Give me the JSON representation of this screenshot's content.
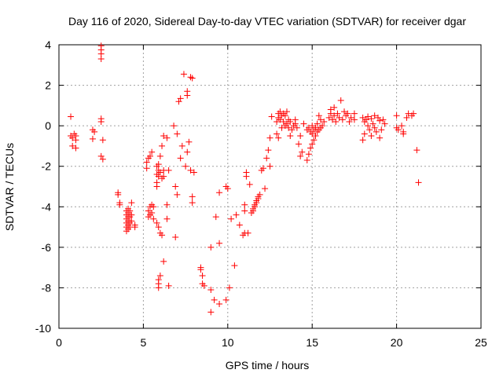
{
  "chart_data": {
    "type": "scatter",
    "title": "Day 116 of 2020, Sidereal Day-to-day VTEC variation (SDTVAR) for receiver dgar",
    "xlabel": "GPS time / hours",
    "ylabel": "SDTVAR / TECUs",
    "xlim": [
      0,
      25
    ],
    "ylim": [
      -10,
      4
    ],
    "xticks": [
      0,
      5,
      10,
      15,
      20,
      25
    ],
    "yticks": [
      -10,
      -8,
      -6,
      -4,
      -2,
      0,
      2,
      4
    ],
    "grid": true,
    "marker": "+",
    "color": "#ff0000",
    "series": [
      {
        "name": "SDTVAR",
        "points": [
          [
            0.7,
            0.45
          ],
          [
            0.7,
            -0.5
          ],
          [
            0.8,
            -0.6
          ],
          [
            0.8,
            -1.0
          ],
          [
            0.9,
            -0.4
          ],
          [
            1.0,
            -0.7
          ],
          [
            1.0,
            -1.1
          ],
          [
            1.0,
            -0.5
          ],
          [
            2.0,
            -0.2
          ],
          [
            2.0,
            -0.65
          ],
          [
            2.1,
            -0.3
          ],
          [
            2.5,
            3.95
          ],
          [
            2.5,
            3.75
          ],
          [
            2.5,
            3.55
          ],
          [
            2.5,
            3.3
          ],
          [
            2.5,
            0.35
          ],
          [
            2.5,
            0.2
          ],
          [
            2.5,
            -1.5
          ],
          [
            2.6,
            -1.65
          ],
          [
            2.6,
            -0.7
          ],
          [
            3.5,
            -3.3
          ],
          [
            3.5,
            -3.4
          ],
          [
            3.6,
            -3.8
          ],
          [
            3.6,
            -3.9
          ],
          [
            4.0,
            -4.2
          ],
          [
            4.0,
            -4.4
          ],
          [
            4.0,
            -4.6
          ],
          [
            4.0,
            -4.8
          ],
          [
            4.0,
            -5.0
          ],
          [
            4.0,
            -5.2
          ],
          [
            4.1,
            -4.1
          ],
          [
            4.1,
            -4.3
          ],
          [
            4.1,
            -4.5
          ],
          [
            4.1,
            -4.7
          ],
          [
            4.1,
            -4.9
          ],
          [
            4.1,
            -5.1
          ],
          [
            4.2,
            -4.2
          ],
          [
            4.2,
            -4.5
          ],
          [
            4.2,
            -4.8
          ],
          [
            4.2,
            -5.0
          ],
          [
            4.3,
            -4.4
          ],
          [
            4.3,
            -4.7
          ],
          [
            4.3,
            -3.8
          ],
          [
            4.5,
            -5.0
          ],
          [
            4.5,
            -4.9
          ],
          [
            5.2,
            -2.1
          ],
          [
            5.2,
            -1.8
          ],
          [
            5.3,
            -1.6
          ],
          [
            5.3,
            -4.2
          ],
          [
            5.3,
            -4.5
          ],
          [
            5.4,
            -1.5
          ],
          [
            5.4,
            -4.0
          ],
          [
            5.4,
            -4.4
          ],
          [
            5.5,
            -3.9
          ],
          [
            5.5,
            -4.3
          ],
          [
            5.5,
            -1.3
          ],
          [
            5.6,
            -4.0
          ],
          [
            5.6,
            -4.6
          ],
          [
            5.8,
            -2.0
          ],
          [
            5.8,
            -2.4
          ],
          [
            5.8,
            -2.8
          ],
          [
            5.8,
            -3.0
          ],
          [
            5.8,
            -4.8
          ],
          [
            5.9,
            -1.9
          ],
          [
            5.9,
            -2.2
          ],
          [
            5.9,
            -2.5
          ],
          [
            5.9,
            -5.0
          ],
          [
            5.9,
            -7.6
          ],
          [
            5.9,
            -7.8
          ],
          [
            5.9,
            -8.0
          ],
          [
            6.0,
            -1.5
          ],
          [
            6.0,
            -2.3
          ],
          [
            6.0,
            -5.3
          ],
          [
            6.0,
            -7.4
          ],
          [
            6.1,
            -1.0
          ],
          [
            6.1,
            -2.6
          ],
          [
            6.1,
            -5.4
          ],
          [
            6.2,
            -2.5
          ],
          [
            6.2,
            -2.2
          ],
          [
            6.2,
            -6.7
          ],
          [
            6.2,
            -0.5
          ],
          [
            6.4,
            -0.6
          ],
          [
            6.4,
            -3.9
          ],
          [
            6.4,
            -4.6
          ],
          [
            6.5,
            -2.2
          ],
          [
            6.5,
            -7.9
          ],
          [
            6.8,
            0.0
          ],
          [
            6.9,
            -3.0
          ],
          [
            6.9,
            -5.5
          ],
          [
            7.0,
            -0.4
          ],
          [
            7.0,
            -3.4
          ],
          [
            7.1,
            1.2
          ],
          [
            7.2,
            1.35
          ],
          [
            7.2,
            -1.6
          ],
          [
            7.3,
            -1.0
          ],
          [
            7.4,
            2.55
          ],
          [
            7.5,
            -2.0
          ],
          [
            7.6,
            1.5
          ],
          [
            7.6,
            1.7
          ],
          [
            7.6,
            -1.3
          ],
          [
            7.7,
            -0.8
          ],
          [
            7.8,
            2.4
          ],
          [
            7.8,
            -2.2
          ],
          [
            7.9,
            2.35
          ],
          [
            7.9,
            -3.5
          ],
          [
            7.9,
            -3.8
          ],
          [
            8.0,
            -2.3
          ],
          [
            8.4,
            -7.0
          ],
          [
            8.4,
            -7.1
          ],
          [
            8.5,
            -7.4
          ],
          [
            8.5,
            -7.8
          ],
          [
            8.6,
            -7.9
          ],
          [
            9.0,
            -9.2
          ],
          [
            9.0,
            -8.1
          ],
          [
            9.0,
            -6.0
          ],
          [
            9.2,
            -8.6
          ],
          [
            9.3,
            -4.5
          ],
          [
            9.5,
            -8.8
          ],
          [
            9.5,
            -5.8
          ],
          [
            9.5,
            -3.3
          ],
          [
            9.9,
            -8.6
          ],
          [
            9.9,
            -3.0
          ],
          [
            10.0,
            -3.1
          ],
          [
            10.1,
            -8.0
          ],
          [
            10.2,
            -4.6
          ],
          [
            10.4,
            -6.9
          ],
          [
            10.5,
            -4.4
          ],
          [
            10.7,
            -4.9
          ],
          [
            10.9,
            -5.4
          ],
          [
            11.0,
            -5.3
          ],
          [
            11.0,
            -4.2
          ],
          [
            11.0,
            -3.9
          ],
          [
            11.1,
            -2.3
          ],
          [
            11.1,
            -2.5
          ],
          [
            11.2,
            -5.3
          ],
          [
            11.3,
            -2.9
          ],
          [
            11.4,
            -4.3
          ],
          [
            11.5,
            -4.1
          ],
          [
            11.5,
            -4.2
          ],
          [
            11.6,
            -3.9
          ],
          [
            11.6,
            -4.0
          ],
          [
            11.7,
            -3.7
          ],
          [
            11.7,
            -3.8
          ],
          [
            11.8,
            -3.5
          ],
          [
            11.8,
            -3.6
          ],
          [
            11.9,
            -3.4
          ],
          [
            12.0,
            -2.2
          ],
          [
            12.1,
            -2.1
          ],
          [
            12.2,
            -3.1
          ],
          [
            12.3,
            -1.6
          ],
          [
            12.4,
            -1.2
          ],
          [
            12.5,
            -2.0
          ],
          [
            12.5,
            -0.6
          ],
          [
            12.6,
            0.45
          ],
          [
            12.9,
            -0.4
          ],
          [
            12.9,
            0.2
          ],
          [
            13.0,
            -0.6
          ],
          [
            13.0,
            0.4
          ],
          [
            13.0,
            0.6
          ],
          [
            13.1,
            0.7
          ],
          [
            13.1,
            0.3
          ],
          [
            13.2,
            0.5
          ],
          [
            13.2,
            -0.1
          ],
          [
            13.3,
            0.2
          ],
          [
            13.3,
            0.6
          ],
          [
            13.4,
            0.0
          ],
          [
            13.4,
            0.5
          ],
          [
            13.5,
            0.1
          ],
          [
            13.5,
            0.7
          ],
          [
            13.6,
            -0.1
          ],
          [
            13.6,
            0.3
          ],
          [
            13.7,
            0.2
          ],
          [
            13.7,
            -0.5
          ],
          [
            13.8,
            -0.2
          ],
          [
            13.9,
            0.0
          ],
          [
            14.0,
            0.1
          ],
          [
            14.0,
            0.3
          ],
          [
            14.1,
            -0.1
          ],
          [
            14.2,
            -0.9
          ],
          [
            14.3,
            -0.5
          ],
          [
            14.3,
            -1.5
          ],
          [
            14.4,
            -1.3
          ],
          [
            14.5,
            0.1
          ],
          [
            14.7,
            -0.2
          ],
          [
            14.7,
            -1.7
          ],
          [
            14.8,
            -0.1
          ],
          [
            14.8,
            -1.4
          ],
          [
            14.9,
            -0.3
          ],
          [
            14.9,
            -1.1
          ],
          [
            15.0,
            -0.4
          ],
          [
            15.0,
            -0.9
          ],
          [
            15.0,
            0.0
          ],
          [
            15.1,
            -0.2
          ],
          [
            15.1,
            -0.7
          ],
          [
            15.2,
            -0.1
          ],
          [
            15.2,
            -0.5
          ],
          [
            15.3,
            -0.3
          ],
          [
            15.3,
            0.1
          ],
          [
            15.4,
            -0.2
          ],
          [
            15.4,
            0.5
          ],
          [
            15.5,
            -0.1
          ],
          [
            15.5,
            0.3
          ],
          [
            15.6,
            0.0
          ],
          [
            15.7,
            0.2
          ],
          [
            16.0,
            0.4
          ],
          [
            16.1,
            0.6
          ],
          [
            16.1,
            0.8
          ],
          [
            16.2,
            0.3
          ],
          [
            16.3,
            0.9
          ],
          [
            16.3,
            0.5
          ],
          [
            16.4,
            0.2
          ],
          [
            16.5,
            0.6
          ],
          [
            16.6,
            0.4
          ],
          [
            16.7,
            1.25
          ],
          [
            16.8,
            0.3
          ],
          [
            16.9,
            0.7
          ],
          [
            17.0,
            0.5
          ],
          [
            17.1,
            0.6
          ],
          [
            17.2,
            0.2
          ],
          [
            17.3,
            0.4
          ],
          [
            17.5,
            0.6
          ],
          [
            17.5,
            0.3
          ],
          [
            18.0,
            0.4
          ],
          [
            18.0,
            -0.7
          ],
          [
            18.1,
            0.2
          ],
          [
            18.1,
            -0.4
          ],
          [
            18.2,
            0.3
          ],
          [
            18.3,
            0.45
          ],
          [
            18.3,
            0.0
          ],
          [
            18.4,
            -0.2
          ],
          [
            18.5,
            0.35
          ],
          [
            18.5,
            -0.5
          ],
          [
            18.6,
            0.1
          ],
          [
            18.7,
            0.5
          ],
          [
            18.7,
            -0.1
          ],
          [
            18.8,
            -0.3
          ],
          [
            18.9,
            0.4
          ],
          [
            19.0,
            -0.6
          ],
          [
            19.0,
            0.25
          ],
          [
            19.1,
            -0.2
          ],
          [
            19.2,
            0.3
          ],
          [
            19.3,
            0.1
          ],
          [
            20.0,
            0.5
          ],
          [
            20.0,
            -0.1
          ],
          [
            20.1,
            -0.2
          ],
          [
            20.3,
            0.0
          ],
          [
            20.4,
            -0.3
          ],
          [
            20.4,
            -0.4
          ],
          [
            20.6,
            0.4
          ],
          [
            20.7,
            0.6
          ],
          [
            20.9,
            0.5
          ],
          [
            21.0,
            0.6
          ],
          [
            21.2,
            -1.2
          ],
          [
            21.3,
            -2.8
          ]
        ]
      }
    ]
  }
}
